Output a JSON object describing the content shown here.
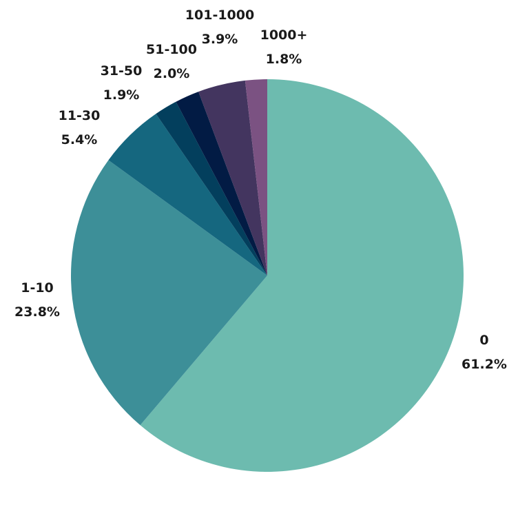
{
  "chart_data": {
    "type": "pie",
    "title": "",
    "start_angle_deg": 0,
    "direction": "clockwise",
    "slices": [
      {
        "label": "0",
        "value": 61.2,
        "display": "61.2%",
        "color": "#6dbbaf"
      },
      {
        "label": "1-10",
        "value": 23.8,
        "display": "23.8%",
        "color": "#3d8f98"
      },
      {
        "label": "11-30",
        "value": 5.4,
        "display": "5.4%",
        "color": "#15677f"
      },
      {
        "label": "31-50",
        "value": 1.9,
        "display": "1.9%",
        "color": "#033f5d"
      },
      {
        "label": "51-100",
        "value": 2.0,
        "display": "2.0%",
        "color": "#021b44"
      },
      {
        "label": "101-1000",
        "value": 3.9,
        "display": "3.9%",
        "color": "#43355f"
      },
      {
        "label": "1000+",
        "value": 1.8,
        "display": "1.8%",
        "color": "#7b5282"
      }
    ]
  }
}
